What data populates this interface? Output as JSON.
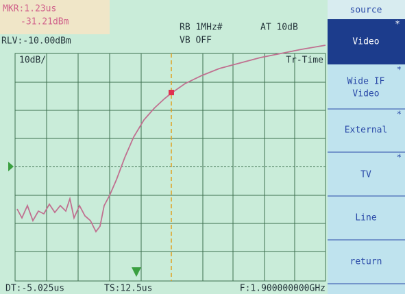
{
  "marker": {
    "time": "MKR:1.23us",
    "level": "-31.21dBm"
  },
  "status": {
    "reference_level": "RLV:-10.00dBm",
    "resolution_bandwidth": "RB 1MHz#",
    "attenuation": "AT 10dB",
    "video_bandwidth": "VB OFF",
    "scale": "10dB/",
    "trigger": "Tr-Time"
  },
  "footer": {
    "delay": "DT:-5.025us",
    "sweep_time": "TS:12.5us",
    "frequency": "F:1.900000000GHz"
  },
  "menu": {
    "title": "source",
    "items": [
      {
        "lines": [
          "Video"
        ],
        "flag": "*"
      },
      {
        "lines": [
          "Wide IF",
          "Video"
        ],
        "flag": "*"
      },
      {
        "lines": [
          "External"
        ],
        "flag": "*"
      },
      {
        "lines": [
          "TV"
        ],
        "flag": "*"
      },
      {
        "lines": [
          "Line"
        ]
      },
      {
        "lines": [
          "return"
        ]
      }
    ]
  }
}
